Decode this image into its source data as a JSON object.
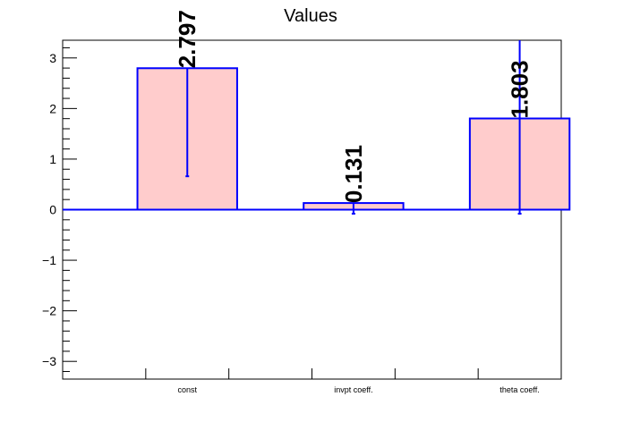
{
  "chart_data": {
    "type": "bar",
    "title": "Values",
    "xlabel": "",
    "ylabel": "",
    "categories": [
      "const",
      "invpt coeff.",
      "theta coeff."
    ],
    "values": [
      2.797,
      0.131,
      1.803
    ],
    "value_labels": [
      "2.797",
      "0.131",
      "1.803"
    ],
    "errors": [
      {
        "low": 0.66,
        "high": 2.797
      },
      {
        "low": -0.08,
        "high": 0.131
      },
      {
        "low": -0.08,
        "high": 3.35
      }
    ],
    "ylim": [
      -3.35,
      3.35
    ],
    "yticks": [
      -3,
      -2,
      -1,
      0,
      1,
      2,
      3
    ],
    "ytick_labels": [
      "−3",
      "−2",
      "−1",
      "0",
      "1",
      "2",
      "3"
    ],
    "grid": false,
    "legend": "none",
    "colors": {
      "bar_fill": "#ffcccc",
      "bar_edge": "#0000ff",
      "error_bar": "#0000ff",
      "zero_line": "#0000ff",
      "axis": "#000000"
    }
  }
}
